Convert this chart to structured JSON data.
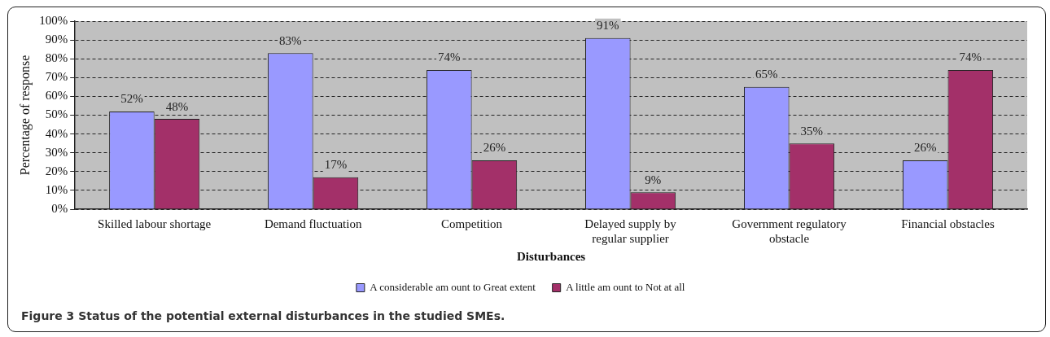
{
  "chart_data": {
    "type": "bar",
    "categories": [
      "Skilled labour shortage",
      "Demand fluctuation",
      "Competition",
      "Delayed supply by regular supplier",
      "Government regulatory obstacle",
      "Financial obstacles"
    ],
    "series": [
      {
        "name": "A considerable am ount to Great extent",
        "color": "#9999ff",
        "values": [
          52,
          83,
          74,
          91,
          65,
          26
        ],
        "value_labels": [
          "52%",
          "83%",
          "74%",
          "91%",
          "65%",
          "26%"
        ]
      },
      {
        "name": "A little am ount to Not at all",
        "color": "#a33069",
        "values": [
          48,
          17,
          26,
          9,
          35,
          74
        ],
        "value_labels": [
          "48%",
          "17%",
          "26%",
          "9%",
          "35%",
          "74%"
        ]
      }
    ],
    "xlabel": "Disturbances",
    "ylabel": "Percentage of response",
    "ylim": [
      0,
      100
    ],
    "yticks": [
      {
        "value": 0,
        "label": "0%"
      },
      {
        "value": 10,
        "label": "10%"
      },
      {
        "value": 20,
        "label": "20%"
      },
      {
        "value": 30,
        "label": "30%"
      },
      {
        "value": 40,
        "label": "40%"
      },
      {
        "value": 50,
        "label": "50%"
      },
      {
        "value": 60,
        "label": "60%"
      },
      {
        "value": 70,
        "label": "70%"
      },
      {
        "value": 80,
        "label": "80%"
      },
      {
        "value": 90,
        "label": "90%"
      },
      {
        "value": 100,
        "label": "100%"
      }
    ],
    "grid": "y",
    "legend": "bottom",
    "annotations": [
      "Figure 3 Status of the potential external disturbances in the studied SMEs."
    ]
  }
}
